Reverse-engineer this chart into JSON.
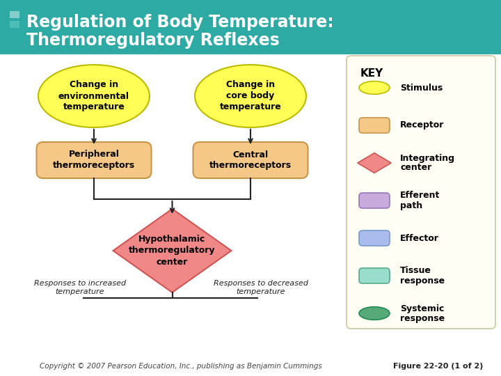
{
  "title_line1": "Regulation of Body Temperature:",
  "title_line2": "Thermoregulatory Reflexes",
  "title_bg": "#2eaaa5",
  "title_text_color": "#ffffff",
  "stripe_colors": [
    "#82ceca",
    "#4dbdb8",
    "#2eaaa5"
  ],
  "main_bg": "#ffffff",
  "footer_text": "Copyright © 2007 Pearson Education, Inc., publishing as Benjamin Cummings",
  "figure_label": "Figure 22-20 (1 of 2)",
  "key_bg": "#fffff5",
  "key_border": "#c8c8a0",
  "stimulus_color": "#ffff55",
  "stimulus_border": "#bbbb00",
  "receptor_color": "#f5c888",
  "receptor_border": "#c8964a",
  "integrating_color": "#f08888",
  "integrating_border": "#cc5555",
  "efferent_color": "#c8aadd",
  "efferent_border": "#9977bb",
  "effector_color": "#aabbee",
  "effector_border": "#7799cc",
  "tissue_color": "#99ddcc",
  "tissue_border": "#55aa88",
  "systemic_color": "#55aa77",
  "systemic_border": "#228855",
  "node1_text": "Change in\nenvironmental\ntemperature",
  "node2_text": "Change in\ncore body\ntemperature",
  "node3_text": "Peripheral\nthermoreceptors",
  "node4_text": "Central\nthermoreceptors",
  "node5_text": "Hypothalamic\nthermoregulatory\ncenter",
  "resp_increased": "Responses to increased\ntemperature",
  "resp_decreased": "Responses to decreased\ntemperature"
}
